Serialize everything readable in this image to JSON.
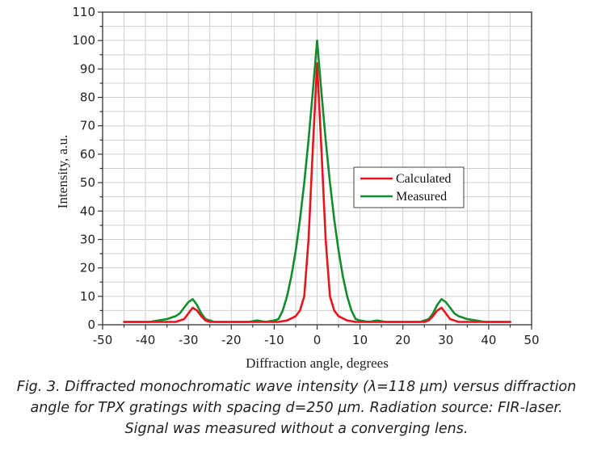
{
  "chart_data": {
    "type": "line",
    "title": "",
    "xlabel": "Diffraction angle, degrees",
    "ylabel": "Intensity, a.u.",
    "xlim": [
      -50,
      50
    ],
    "ylim": [
      0,
      110
    ],
    "xticks": [
      "-50",
      "-40",
      "-30",
      "-20",
      "-10",
      "0",
      "10",
      "20",
      "30",
      "40",
      "50"
    ],
    "yticks": [
      "0",
      "10",
      "20",
      "30",
      "40",
      "50",
      "60",
      "70",
      "80",
      "90",
      "100",
      "110"
    ],
    "grid": true,
    "legend_position": "right-middle",
    "series": [
      {
        "name": "Calculated",
        "color": "#e8141c",
        "x": [
          -45,
          -43,
          -41,
          -39,
          -37,
          -35,
          -33,
          -31,
          -30,
          -29,
          -28,
          -27,
          -26,
          -25,
          -23,
          -21,
          -19,
          -17,
          -15,
          -13,
          -11,
          -9,
          -7,
          -5,
          -4,
          -3,
          -2,
          -1,
          0,
          1,
          2,
          3,
          4,
          5,
          7,
          9,
          11,
          13,
          15,
          17,
          19,
          21,
          23,
          25,
          26,
          27,
          28,
          29,
          30,
          31,
          33,
          35,
          37,
          39,
          41,
          43,
          45
        ],
        "y": [
          1,
          1,
          1,
          1,
          1,
          1,
          1,
          2,
          4,
          6,
          5,
          3,
          1.5,
          1,
          1,
          1,
          1,
          1,
          1,
          1,
          1,
          1,
          1.5,
          3,
          5,
          10,
          30,
          62,
          92,
          62,
          30,
          10,
          5,
          3,
          1.5,
          1,
          1,
          1,
          1,
          1,
          1,
          1,
          1,
          1,
          1.5,
          3,
          5,
          6,
          4,
          2,
          1,
          1,
          1,
          1,
          1,
          1,
          1
        ]
      },
      {
        "name": "Measured",
        "color": "#128c2e",
        "x": [
          -45,
          -43,
          -41,
          -39,
          -37,
          -35,
          -33,
          -32,
          -31,
          -30,
          -29,
          -28,
          -27,
          -26,
          -25,
          -24,
          -22,
          -20,
          -18,
          -16,
          -14,
          -12,
          -10,
          -9,
          -8,
          -7,
          -6,
          -5,
          -4,
          -3,
          -2,
          -1,
          0,
          1,
          2,
          3,
          4,
          5,
          6,
          7,
          8,
          9,
          10,
          12,
          14,
          16,
          18,
          20,
          22,
          24,
          25,
          26,
          27,
          28,
          29,
          30,
          31,
          32,
          33,
          35,
          37,
          39,
          41,
          43,
          45
        ],
        "y": [
          1,
          1,
          1,
          1,
          1.5,
          2,
          3,
          4,
          6,
          8,
          9,
          7,
          4,
          2,
          1.5,
          1,
          1,
          1,
          1,
          1,
          1.5,
          1,
          1.5,
          2,
          5,
          10,
          17,
          26,
          37,
          50,
          65,
          82,
          100,
          82,
          65,
          50,
          37,
          26,
          17,
          10,
          5,
          2,
          1.5,
          1,
          1.5,
          1,
          1,
          1,
          1,
          1,
          1.5,
          2,
          4,
          7,
          9,
          8,
          6,
          4,
          3,
          2,
          1.5,
          1,
          1,
          1,
          1
        ]
      }
    ]
  },
  "caption": "Fig. 3. Diffracted monochromatic wave intensity (λ=118 µm) versus diffraction angle for TPX gratings with spacing d=250 µm. Radiation source: FIR-laser. Signal was measured without a converging lens."
}
